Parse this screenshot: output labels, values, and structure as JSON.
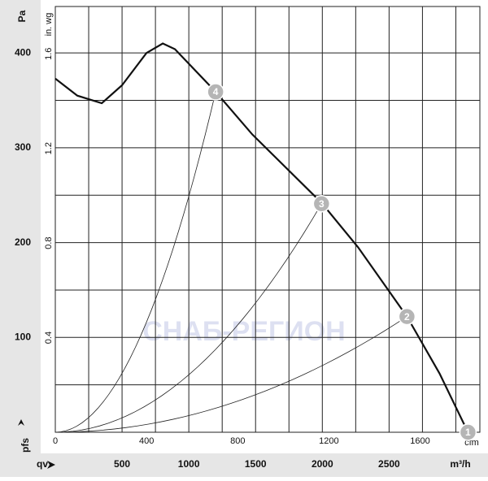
{
  "chart_data": {
    "type": "line",
    "y_label": "Pa",
    "y2_label": "in. wg",
    "y_symbol": "pfs",
    "x_symbol": "qv",
    "x_label": "m³/h",
    "x2_label": "cfm",
    "watermark": "СНАБ-РЕГИОН",
    "xlim": [
      0,
      3180
    ],
    "xticks": [
      500,
      1000,
      1500,
      2000,
      2500
    ],
    "x_minor_grid": [
      250,
      750,
      1250,
      1750,
      2250,
      2750,
      3000
    ],
    "x2lim": [
      0,
      1862
    ],
    "x2ticks": [
      0,
      400,
      800,
      1200,
      1600
    ],
    "ylim": [
      0,
      449
    ],
    "yticks": [
      100,
      200,
      300,
      400
    ],
    "y_minor_grid": [
      50,
      150,
      250,
      350
    ],
    "y2lim": [
      0,
      1.8
    ],
    "y2ticks": [
      0.4,
      0.8,
      1.2,
      1.6
    ],
    "grid": true,
    "series": [
      {
        "color": "#111111",
        "x": [
          0,
          165,
          348,
          500,
          683,
          805,
          896,
          1201,
          1476,
          1994,
          2268,
          2634,
          2878,
          3091
        ],
        "values": [
          373,
          355,
          347,
          366,
          400,
          410,
          404,
          359,
          314,
          242,
          195,
          122,
          62,
          0
        ]
      }
    ],
    "points": [
      {
        "label": "1",
        "x": 3091,
        "y": 0
      },
      {
        "label": "2",
        "x": 2634,
        "y": 122
      },
      {
        "label": "3",
        "x": 1994,
        "y": 241
      },
      {
        "label": "4",
        "x": 1201,
        "y": 359
      }
    ]
  }
}
